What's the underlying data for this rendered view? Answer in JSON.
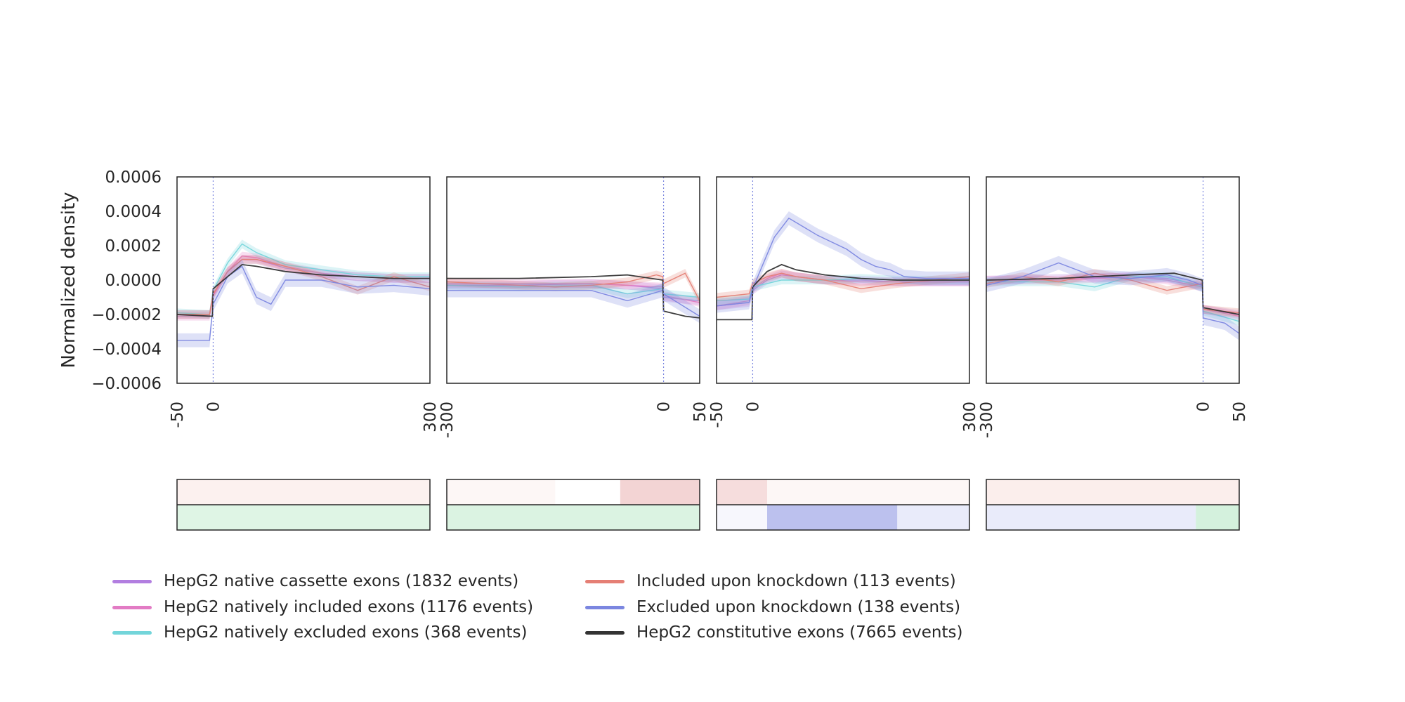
{
  "chart_data": {
    "type": "line",
    "ylabel": "Normalized density",
    "ylim": [
      -0.0006,
      0.0006
    ],
    "yticks": [
      0.0006,
      0.0004,
      0.0002,
      0.0,
      -0.0002,
      -0.0004,
      -0.0006
    ],
    "ytick_labels": [
      "0.0006",
      "0.0004",
      "0.0002",
      "0.0000",
      "−0.0002",
      "−0.0004",
      "−0.0006"
    ],
    "legend_position": "bottom",
    "series_styles": [
      {
        "name": "HepG2 native cassette exons (1832 events)",
        "color": "#b27ee0"
      },
      {
        "name": "HepG2 natively included exons (1176 events)",
        "color": "#e27bc4"
      },
      {
        "name": "HepG2 natively excluded exons (368 events)",
        "color": "#73d5da"
      },
      {
        "name": "Included upon knockdown (113 events)",
        "color": "#e57f75"
      },
      {
        "name": "Excluded upon knockdown (138 events)",
        "color": "#7b86e0"
      },
      {
        "name": "HepG2 constitutive exons (7665 events)",
        "color": "#333333"
      }
    ],
    "panels": [
      {
        "xlim": [
          -50,
          300
        ],
        "xticks": [
          -50,
          0,
          300
        ],
        "xtick_labels": [
          "-50",
          "0",
          "300"
        ],
        "vline": 0,
        "series": [
          {
            "x": [
              -50,
              -5,
              0,
              20,
              40,
              60,
              100,
              150,
              200,
              250,
              300
            ],
            "y": [
              -0.0002,
              -0.0002,
              -8e-05,
              5e-05,
              0.00012,
              0.00012,
              7e-05,
              4e-05,
              2e-05,
              1e-05,
              1e-05
            ]
          },
          {
            "x": [
              -50,
              -5,
              0,
              20,
              40,
              60,
              100,
              150,
              200,
              250,
              300
            ],
            "y": [
              -0.00021,
              -0.00021,
              -9e-05,
              5e-05,
              0.00014,
              0.00013,
              8e-05,
              4e-05,
              2e-05,
              1e-05,
              1e-05
            ]
          },
          {
            "x": [
              -50,
              -5,
              0,
              20,
              40,
              60,
              100,
              150,
              200,
              250,
              300
            ],
            "y": [
              -0.00019,
              -0.0002,
              -6e-05,
              0.0001,
              0.00021,
              0.00016,
              9e-05,
              6e-05,
              3e-05,
              2e-05,
              2e-05
            ]
          },
          {
            "x": [
              -50,
              -5,
              0,
              20,
              40,
              60,
              100,
              150,
              200,
              250,
              300
            ],
            "y": [
              -0.0002,
              -0.0002,
              -8e-05,
              5e-05,
              0.00012,
              0.00012,
              8e-05,
              2e-05,
              -6e-05,
              2e-05,
              -4e-05
            ]
          },
          {
            "x": [
              -50,
              -5,
              0,
              20,
              40,
              60,
              80,
              100,
              150,
              200,
              250,
              300
            ],
            "y": [
              -0.00035,
              -0.00035,
              -0.00014,
              2e-05,
              8e-05,
              -0.0001,
              -0.00014,
              0.0,
              0.0,
              -4e-05,
              -3e-05,
              -5e-05
            ]
          },
          {
            "x": [
              -50,
              -1,
              0,
              20,
              40,
              60,
              100,
              150,
              200,
              250,
              300
            ],
            "y": [
              -0.0002,
              -0.00021,
              -5e-05,
              2e-05,
              9e-05,
              8e-05,
              5e-05,
              3e-05,
              2e-05,
              1e-05,
              1e-05
            ]
          }
        ]
      },
      {
        "xlim": [
          -300,
          50
        ],
        "xticks": [
          -300,
          0,
          50
        ],
        "xtick_labels": [
          "-300",
          "0",
          "50"
        ],
        "vline": 0,
        "series": [
          {
            "x": [
              -300,
              -200,
              -100,
              -50,
              -1,
              0,
              50
            ],
            "y": [
              -3e-05,
              -3e-05,
              -2e-05,
              -3e-05,
              -5e-05,
              -0.0001,
              -0.00012
            ]
          },
          {
            "x": [
              -300,
              -200,
              -100,
              -50,
              -1,
              0,
              50
            ],
            "y": [
              -2e-05,
              -2e-05,
              -2e-05,
              -3e-05,
              -4e-05,
              -9e-05,
              -0.00013
            ]
          },
          {
            "x": [
              -300,
              -200,
              -100,
              -50,
              -1,
              0,
              50
            ],
            "y": [
              -3e-05,
              -4e-05,
              -3e-05,
              -8e-05,
              -5e-05,
              -8e-05,
              -0.0001
            ]
          },
          {
            "x": [
              -300,
              -250,
              -150,
              -100,
              -50,
              -10,
              -1,
              0,
              30,
              50
            ],
            "y": [
              -1e-05,
              -2e-05,
              -4e-05,
              -3e-05,
              -1e-05,
              3e-05,
              2e-05,
              -2e-05,
              4e-05,
              -0.00012
            ]
          },
          {
            "x": [
              -300,
              -200,
              -100,
              -50,
              -1,
              0,
              50
            ],
            "y": [
              -6e-05,
              -6e-05,
              -6e-05,
              -0.00012,
              -6e-05,
              -8e-05,
              -0.00021
            ]
          },
          {
            "x": [
              -300,
              -200,
              -100,
              -50,
              -1,
              0,
              30,
              50
            ],
            "y": [
              1e-05,
              1e-05,
              2e-05,
              3e-05,
              0.0,
              -0.00018,
              -0.00021,
              -0.00022
            ]
          }
        ]
      },
      {
        "xlim": [
          -50,
          300
        ],
        "xticks": [
          -50,
          0,
          300
        ],
        "xtick_labels": [
          "-50",
          "0",
          "300"
        ],
        "vline": 0,
        "series": [
          {
            "x": [
              -50,
              -5,
              0,
              20,
              40,
              60,
              100,
              150,
              200,
              250,
              300
            ],
            "y": [
              -0.00015,
              -0.00013,
              -6e-05,
              0.0,
              3e-05,
              2e-05,
              0.0,
              0.0,
              -1e-05,
              -1e-05,
              -1e-05
            ]
          },
          {
            "x": [
              -50,
              -5,
              0,
              20,
              40,
              60,
              100,
              150,
              200,
              250,
              300
            ],
            "y": [
              -0.00015,
              -0.00012,
              -5e-05,
              1e-05,
              4e-05,
              2e-05,
              0.0,
              -1e-05,
              -1e-05,
              -1e-05,
              -1e-05
            ]
          },
          {
            "x": [
              -50,
              -5,
              0,
              20,
              40,
              60,
              100,
              150,
              200,
              250,
              300
            ],
            "y": [
              -0.00012,
              -0.00011,
              -4e-05,
              -2e-05,
              0.0,
              0.0,
              0.0,
              1e-05,
              0.0,
              0.0,
              0.0
            ]
          },
          {
            "x": [
              -50,
              -5,
              0,
              20,
              40,
              60,
              100,
              150,
              200,
              250,
              300
            ],
            "y": [
              -0.0001,
              -8e-05,
              -2e-05,
              2e-05,
              4e-05,
              2e-05,
              0.0,
              -5e-05,
              -2e-05,
              0.0,
              2e-05
            ]
          },
          {
            "x": [
              -50,
              -5,
              0,
              10,
              30,
              50,
              70,
              90,
              110,
              130,
              150,
              170,
              190,
              210,
              240,
              270,
              300
            ],
            "y": [
              -0.00015,
              -0.00013,
              -5e-05,
              5e-05,
              0.00025,
              0.00036,
              0.00031,
              0.00026,
              0.00022,
              0.00018,
              0.00012,
              8e-05,
              6e-05,
              2e-05,
              1e-05,
              1e-05,
              1e-05
            ]
          },
          {
            "x": [
              -50,
              -1,
              0,
              20,
              40,
              60,
              100,
              150,
              200,
              250,
              300
            ],
            "y": [
              -0.00023,
              -0.00023,
              -4e-05,
              5e-05,
              9e-05,
              6e-05,
              3e-05,
              1e-05,
              0.0,
              0.0,
              0.0
            ]
          }
        ]
      },
      {
        "xlim": [
          -300,
          50
        ],
        "xticks": [
          -300,
          0,
          50
        ],
        "xtick_labels": [
          "-300",
          "0",
          "50"
        ],
        "vline": 0,
        "series": [
          {
            "x": [
              -300,
              -200,
              -100,
              -50,
              -1,
              0,
              50
            ],
            "y": [
              0.0,
              1e-05,
              2e-05,
              1e-05,
              -3e-05,
              -0.00017,
              -0.0002
            ]
          },
          {
            "x": [
              -300,
              -200,
              -100,
              -50,
              -1,
              0,
              50
            ],
            "y": [
              0.0,
              0.0,
              2e-05,
              0.0,
              -4e-05,
              -0.00017,
              -0.00021
            ]
          },
          {
            "x": [
              -300,
              -200,
              -150,
              -100,
              -50,
              -1,
              0,
              50
            ],
            "y": [
              -1e-05,
              -1e-05,
              -4e-05,
              2e-05,
              2e-05,
              -4e-05,
              -0.00018,
              -0.00024
            ]
          },
          {
            "x": [
              -300,
              -250,
              -200,
              -150,
              -100,
              -50,
              -1,
              0,
              50
            ],
            "y": [
              -2e-05,
              2e-05,
              -1e-05,
              4e-05,
              0.0,
              -6e-05,
              -2e-05,
              -0.00017,
              -0.00019
            ]
          },
          {
            "x": [
              -300,
              -250,
              -200,
              -150,
              -100,
              -50,
              -20,
              -1,
              0,
              30,
              50
            ],
            "y": [
              -3e-05,
              2e-05,
              0.0001,
              2e-05,
              1e-05,
              3e-05,
              0.0,
              -3e-05,
              -0.00022,
              -0.00025,
              -0.00031
            ]
          },
          {
            "x": [
              -300,
              -200,
              -100,
              -40,
              -1,
              0,
              50
            ],
            "y": [
              0.0,
              1e-05,
              3e-05,
              4e-05,
              0.0,
              -0.00016,
              -0.0002
            ]
          }
        ]
      }
    ],
    "heatmaps": [
      {
        "top": [
          {
            "start": -50,
            "end": 300,
            "color": "#f3c8c0",
            "level": 0.25
          }
        ],
        "bottom": [
          {
            "start": -50,
            "end": 300,
            "color": "#b8e8c6",
            "level": 0.45
          }
        ]
      },
      {
        "top": [
          {
            "start": -300,
            "end": -150,
            "color": "#f3c8c0",
            "level": 0.15
          },
          {
            "start": -60,
            "end": 50,
            "color": "#e8a9a9",
            "level": 0.5
          }
        ],
        "bottom": [
          {
            "start": -300,
            "end": 50,
            "color": "#b8e8c6",
            "level": 0.5
          }
        ]
      },
      {
        "top": [
          {
            "start": -50,
            "end": 20,
            "color": "#e8a9a9",
            "level": 0.4
          },
          {
            "start": 20,
            "end": 300,
            "color": "#f3c8c0",
            "level": 0.15
          }
        ],
        "bottom": [
          {
            "start": -50,
            "end": 20,
            "color": "#e3e6f8",
            "level": 0.3
          },
          {
            "start": 20,
            "end": 200,
            "color": "#8f97e2",
            "level": 0.6
          },
          {
            "start": 200,
            "end": 300,
            "color": "#c9cdf2",
            "level": 0.4
          }
        ]
      },
      {
        "top": [
          {
            "start": -300,
            "end": 50,
            "color": "#f3c8c0",
            "level": 0.3
          }
        ],
        "bottom": [
          {
            "start": -300,
            "end": -10,
            "color": "#c9cdf2",
            "level": 0.4
          },
          {
            "start": -10,
            "end": 50,
            "color": "#b8e8c6",
            "level": 0.6
          }
        ]
      }
    ]
  }
}
